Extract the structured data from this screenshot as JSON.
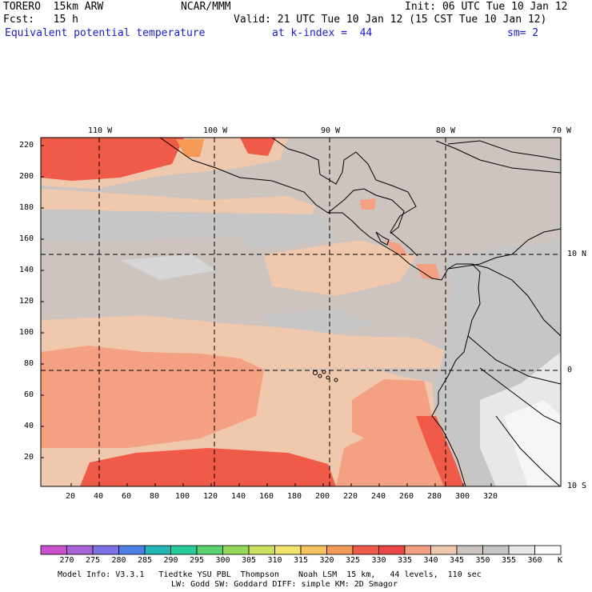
{
  "header": {
    "line1_left": "TORERO  15km ARW",
    "line1_mid": "NCAR/MMM",
    "line1_right": "Init: 06 UTC Tue 10 Jan 12",
    "line2_left": "Fcst:   15 h",
    "line2_right": "Valid: 21 UTC Tue 10 Jan 12 (15 CST Tue 10 Jan 12)",
    "line3_field": "Equivalent potential temperature",
    "line3_level": "at k-index =  44",
    "line3_smooth": "sm= 2"
  },
  "map": {
    "top_lon_labels": [
      "110 W",
      "100 W",
      "90 W",
      "80 W",
      "70 W"
    ],
    "right_lat_labels": [
      "10 N",
      "0",
      "10 S"
    ],
    "y_ticks": [
      "220",
      "200",
      "180",
      "160",
      "140",
      "120",
      "100",
      "80",
      "60",
      "40",
      "20"
    ],
    "x_ticks": [
      "20",
      "40",
      "60",
      "80",
      "100",
      "120",
      "140",
      "160",
      "180",
      "200",
      "220",
      "240",
      "260",
      "280",
      "300",
      "320"
    ]
  },
  "colorbar": {
    "labels": [
      "270",
      "275",
      "280",
      "285",
      "290",
      "295",
      "300",
      "305",
      "310",
      "315",
      "320",
      "325",
      "330",
      "335",
      "340",
      "345",
      "350",
      "355",
      "360"
    ],
    "unit": "K",
    "colors": [
      "#cc4fcc",
      "#a864d8",
      "#7d72e6",
      "#4e7fe6",
      "#22b6b6",
      "#28cc9a",
      "#5ad26e",
      "#96d85a",
      "#cde062",
      "#f0e46e",
      "#f8c25e",
      "#f59a56",
      "#f05a48",
      "#e84848",
      "#f4a082",
      "#f0c8ae",
      "#cdc4bf",
      "#c6c6c6",
      "#e8e8e8",
      "#ffffff"
    ]
  },
  "footer": {
    "line1": "Model Info: V3.3.1   Tiedtke YSU PBL  Thompson    Noah LSM  15 km,   44 levels,  110 sec",
    "line2": "LW: Godd SW: Goddard DIFF: simple KM: 2D Smagor"
  }
}
